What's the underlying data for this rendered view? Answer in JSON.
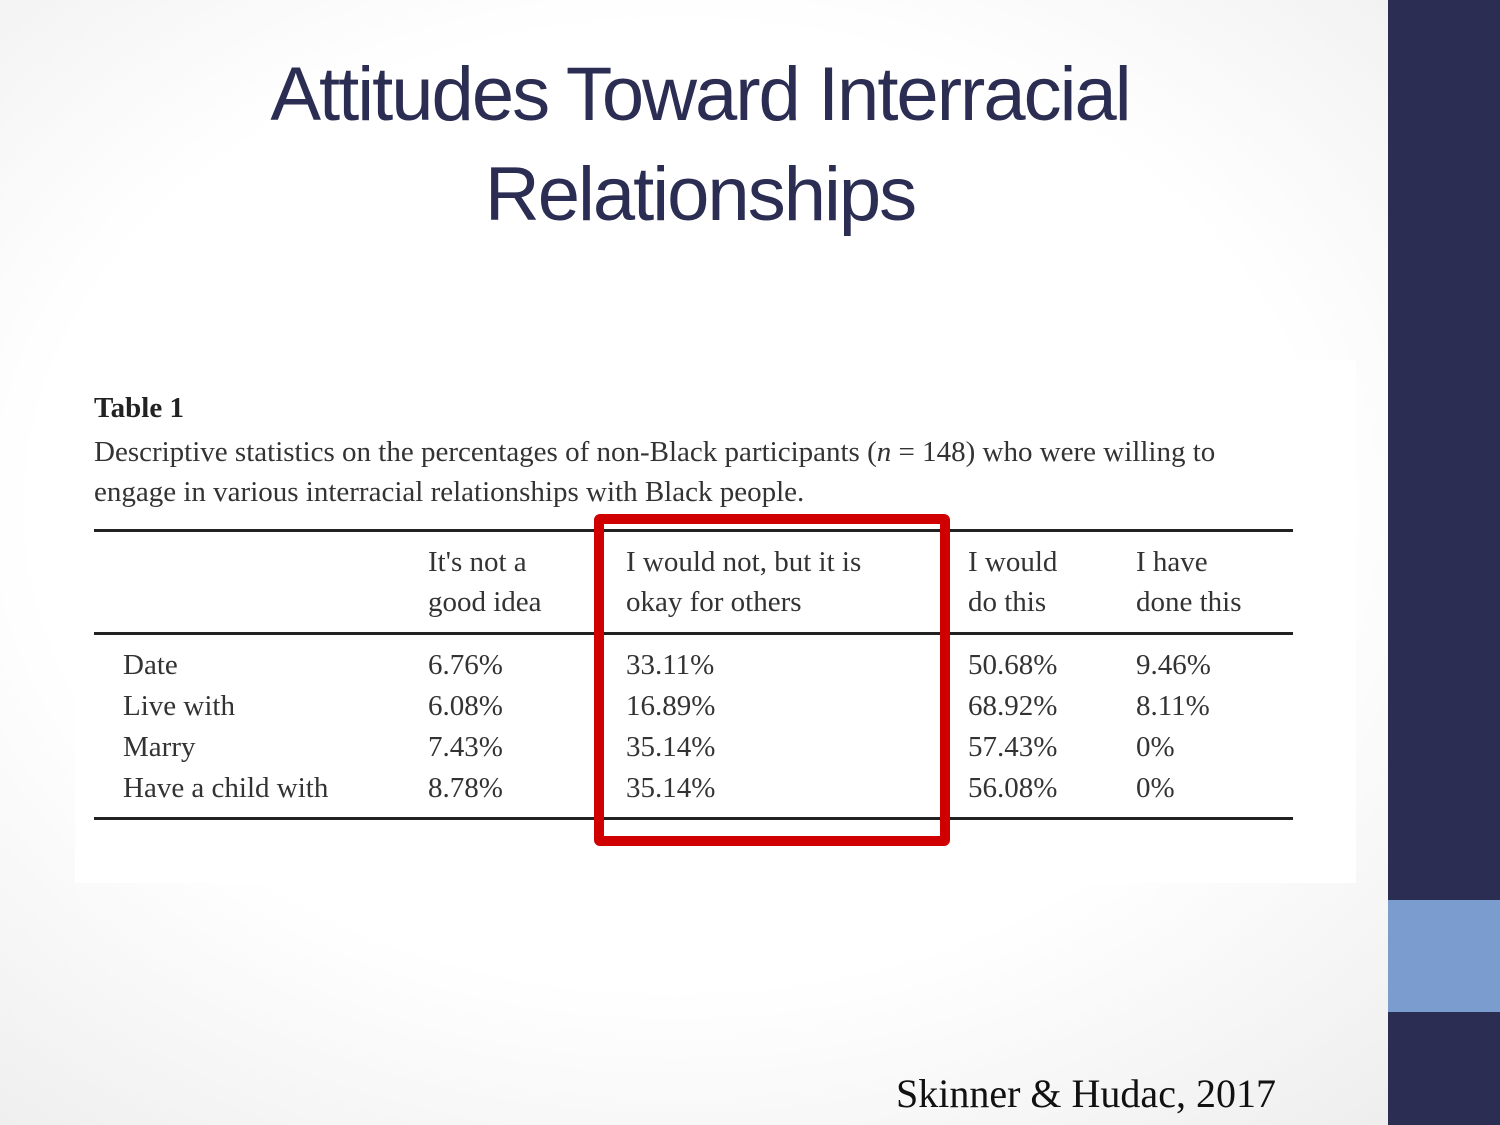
{
  "title": "Attitudes Toward Interracial Relationships",
  "table": {
    "label": "Table 1",
    "caption": [
      "Descriptive statistics on the percentages of non-Black participants (",
      "n",
      " = 148) who were willing to engage in various interracial relationships with Black people."
    ],
    "headers": [
      [
        "It's not a",
        "good idea"
      ],
      [
        "I would not, but it is",
        "okay for others"
      ],
      [
        "I would",
        "do this"
      ],
      [
        "I have",
        "done this"
      ]
    ],
    "rows": [
      [
        "Date",
        "6.76%",
        "33.11%",
        "50.68%",
        "9.46%"
      ],
      [
        "Live with",
        "6.08%",
        "16.89%",
        "68.92%",
        "8.11%"
      ],
      [
        "Marry",
        "7.43%",
        "35.14%",
        "57.43%",
        "0%"
      ],
      [
        "Have a child with",
        "8.78%",
        "35.14%",
        "56.08%",
        "0%"
      ]
    ]
  },
  "citation": "Skinner & Hudac, 2017"
}
